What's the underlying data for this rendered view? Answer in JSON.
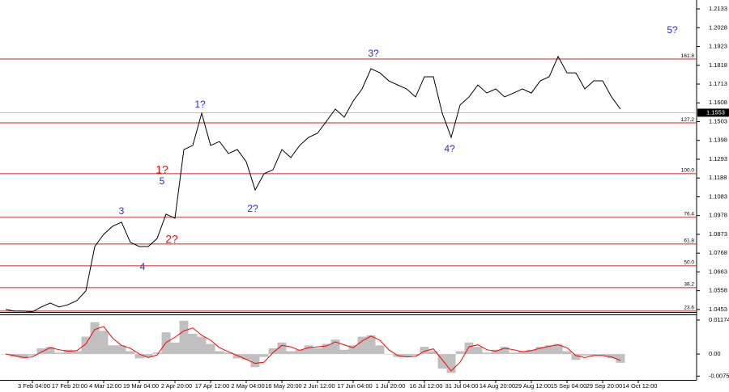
{
  "chart_data": [
    {
      "type": "line",
      "categories": [
        null,
        null,
        null,
        "3 Feb 04:00",
        null,
        null,
        null,
        "17 Feb 20:00",
        null,
        null,
        null,
        "4 Mar 12:00",
        null,
        null,
        null,
        "19 Mar 04:00",
        null,
        null,
        null,
        "2 Apr 20:00",
        null,
        null,
        null,
        "17 Apr 12:00",
        null,
        null,
        null,
        "2 May 04:00",
        null,
        null,
        null,
        "16 May 20:00",
        null,
        null,
        null,
        "2 Jun 12:00",
        null,
        null,
        null,
        "17 Jun 04:00",
        null,
        null,
        null,
        "1 Jul 20:00",
        null,
        null,
        null,
        "16 Jul 12:00",
        null,
        null,
        null,
        "31 Jul 04:00",
        null,
        null,
        null,
        "14 Aug 20:00",
        null,
        null,
        null,
        "29 Aug 12:00",
        null,
        null,
        null,
        "15 Sep 04:00",
        null,
        null,
        null,
        "29 Sep 20:00",
        null,
        null,
        null,
        "14 Oct 12:00"
      ],
      "series": [
        {
          "color": "#000000",
          "values": [
            1.0453,
            1.0444,
            1.0444,
            1.044,
            1.0467,
            1.0489,
            1.0467,
            1.048,
            1.0503,
            1.0557,
            1.0805,
            1.0873,
            1.0918,
            1.0941,
            1.0828,
            1.0805,
            1.0805,
            1.085,
            1.0986,
            1.0963,
            1.1347,
            1.137,
            1.155,
            1.137,
            1.1392,
            1.1325,
            1.1347,
            1.1279,
            1.1121,
            1.1212,
            1.1234,
            1.1347,
            1.1302,
            1.137,
            1.1415,
            1.1438,
            1.1505,
            1.1573,
            1.1528,
            1.1618,
            1.1686,
            1.1799,
            1.1776,
            1.1731,
            1.1708,
            1.1686,
            1.1641,
            1.1754,
            1.1754,
            1.155,
            1.1415,
            1.1596,
            1.1641,
            1.1708,
            1.1663,
            1.1686,
            1.1641,
            1.1663,
            1.1686,
            1.1663,
            1.1731,
            1.1754,
            1.1867,
            1.1776,
            1.1776,
            1.1686,
            1.1731,
            1.1731,
            1.1641,
            1.1573,
            null,
            null
          ]
        }
      ],
      "ylim": [
        1.0439,
        1.2183
      ],
      "yticks": [
        1.2133,
        1.2028,
        1.1923,
        1.1818,
        1.1713,
        1.1608,
        1.1503,
        1.1398,
        1.1293,
        1.1188,
        1.1083,
        1.0978,
        1.0873,
        1.0768,
        1.0663,
        1.0558,
        1.0453
      ],
      "levels": [
        {
          "name": "161.8",
          "value": 1.1853
        },
        {
          "name": "127.2",
          "value": 1.1496
        },
        {
          "name": "100.0",
          "value": 1.1212
        },
        {
          "name": "76.4",
          "value": 1.0968
        },
        {
          "name": "61.8",
          "value": 1.0819
        },
        {
          "name": "50.0",
          "value": 1.0697
        },
        {
          "name": "38.2",
          "value": 1.0575
        },
        {
          "name": "23.6",
          "value": 1.0444
        }
      ],
      "level_color": "#d02020",
      "current_price": 1.1553,
      "annotations": [
        {
          "text": "3",
          "color": "#2b2bd0"
        },
        {
          "text": "4",
          "color": "#2b2bd0"
        },
        {
          "text": "5",
          "color": "#2b2bd0"
        },
        {
          "text": "1?",
          "color": "#e01010"
        },
        {
          "text": "2?",
          "color": "#e01010"
        },
        {
          "text": "1?",
          "color": "#2b2bd0"
        },
        {
          "text": "2?",
          "color": "#2b2bd0"
        },
        {
          "text": "3?",
          "color": "#2b2bd0"
        },
        {
          "text": "4?",
          "color": "#2b2bd0"
        },
        {
          "text": "5?",
          "color": "#2b2bd0"
        }
      ]
    },
    {
      "type": "bar",
      "series": [
        {
          "style": "bar",
          "color": "#c0c0c0",
          "values": [
            0.0,
            -0.001,
            -0.0015,
            -0.0005,
            0.002,
            0.0025,
            0.0005,
            0.0015,
            0.001,
            0.006,
            0.011,
            0.008,
            0.003,
            0.003,
            0.001,
            -0.0015,
            -0.001,
            0.0005,
            0.0075,
            0.004,
            0.0115,
            0.007,
            0.006,
            0.0035,
            0.001,
            0.0005,
            -0.0015,
            -0.002,
            -0.0045,
            -0.001,
            0.002,
            0.004,
            0.001,
            0.0015,
            0.003,
            0.002,
            0.0035,
            0.005,
            0.0015,
            0.003,
            0.006,
            0.0065,
            0.003,
            0.0,
            -0.001,
            -0.001,
            -0.0005,
            0.0025,
            0.001,
            -0.005,
            -0.0065,
            0.001,
            0.004,
            0.0025,
            0.0005,
            0.0015,
            0.0025,
            0.0005,
            0.001,
            0.0015,
            0.0025,
            0.003,
            0.0035,
            0.001,
            -0.002,
            -0.0005,
            -0.0005,
            -0.0005,
            -0.0015,
            -0.003,
            null,
            null
          ]
        },
        {
          "style": "line",
          "color": "#ff0000",
          "values": [
            0.0,
            -0.0005,
            -0.0012,
            -0.001,
            0.0007,
            0.0022,
            0.0015,
            0.001,
            0.0012,
            0.0035,
            0.0085,
            0.0095,
            0.0055,
            0.003,
            0.002,
            0.0,
            -0.0012,
            -0.0003,
            0.004,
            0.0058,
            0.008,
            0.009,
            0.0065,
            0.0048,
            0.0022,
            0.0008,
            -0.0005,
            -0.0018,
            -0.0032,
            -0.0028,
            0.0005,
            0.003,
            0.0025,
            0.0013,
            0.0022,
            0.0025,
            0.0028,
            0.0042,
            0.0032,
            0.0022,
            0.0045,
            0.0062,
            0.0048,
            0.0015,
            -0.0005,
            -0.001,
            -0.0008,
            0.001,
            0.0018,
            -0.002,
            -0.0058,
            -0.0028,
            0.0025,
            0.0032,
            0.0015,
            0.001,
            0.002,
            0.0015,
            0.0008,
            0.0012,
            0.002,
            0.0027,
            0.0032,
            0.0022,
            -0.0005,
            -0.0012,
            -0.0005,
            -0.0005,
            -0.001,
            -0.0022,
            null,
            null
          ]
        }
      ],
      "ylim": [
        -0.0089,
        0.0134
      ],
      "yticks": [
        0.01174,
        {
          "value": 0,
          "label": "0.00"
        },
        -0.00759
      ]
    }
  ]
}
